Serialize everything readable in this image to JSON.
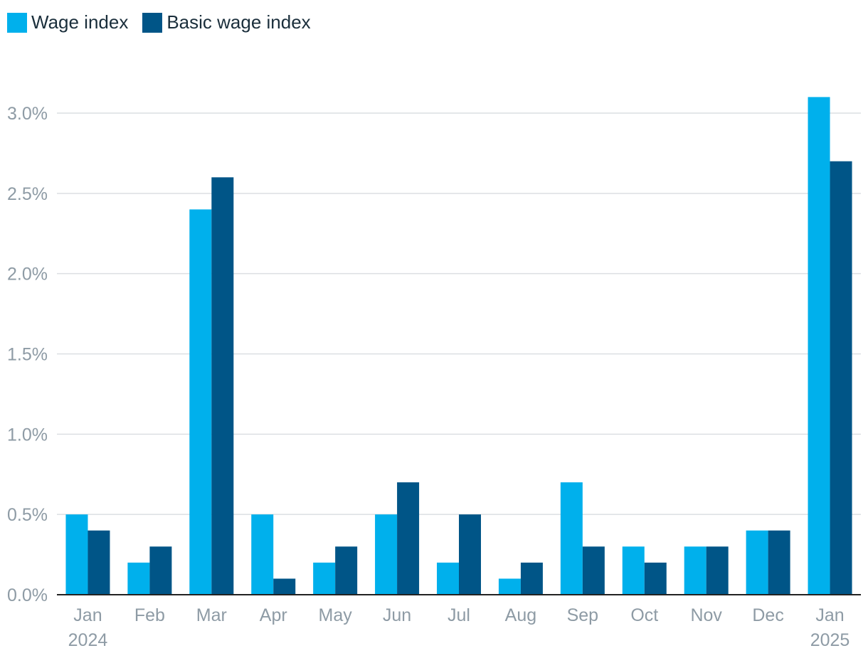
{
  "legend": {
    "items": [
      {
        "label": "Wage index",
        "color": "#00b0ec"
      },
      {
        "label": "Basic wage index",
        "color": "#005587"
      }
    ]
  },
  "chart_data": {
    "type": "bar",
    "categories": [
      [
        "Jan",
        "2024"
      ],
      [
        "Feb"
      ],
      [
        "Mar"
      ],
      [
        "Apr"
      ],
      [
        "May"
      ],
      [
        "Jun"
      ],
      [
        "Jul"
      ],
      [
        "Aug"
      ],
      [
        "Sep"
      ],
      [
        "Oct"
      ],
      [
        "Nov"
      ],
      [
        "Dec"
      ],
      [
        "Jan",
        "2025"
      ]
    ],
    "series": [
      {
        "name": "Wage index",
        "color": "#00b0ec",
        "values": [
          0.5,
          0.2,
          2.4,
          0.5,
          0.2,
          0.5,
          0.2,
          0.1,
          0.7,
          0.3,
          0.3,
          0.4,
          3.1
        ]
      },
      {
        "name": "Basic wage index",
        "color": "#005587",
        "values": [
          0.4,
          0.3,
          2.6,
          0.1,
          0.3,
          0.7,
          0.5,
          0.2,
          0.3,
          0.2,
          0.3,
          0.4,
          2.7
        ]
      }
    ],
    "yticks": [
      "0.0%",
      "0.5%",
      "1.0%",
      "1.5%",
      "2.0%",
      "2.5%",
      "3.0%"
    ],
    "ylim": [
      0,
      3.1
    ],
    "grid": true,
    "legend_position": "top-left"
  }
}
